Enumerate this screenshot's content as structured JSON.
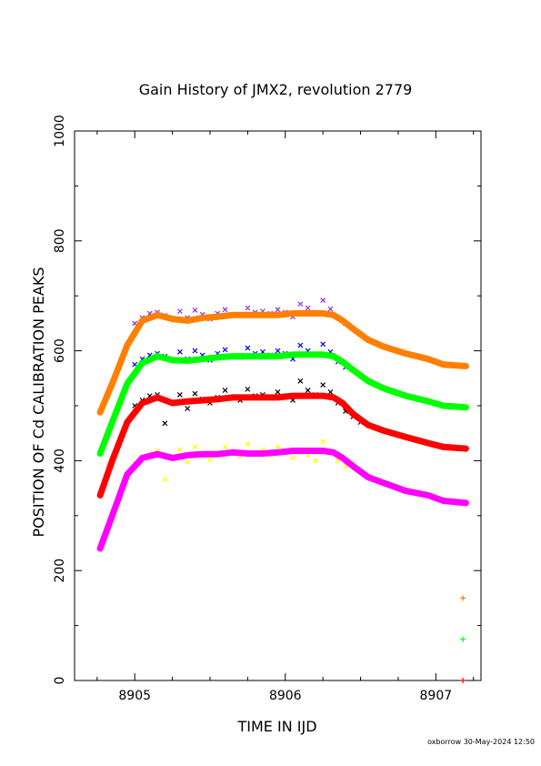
{
  "chart_data": {
    "type": "scatter",
    "title": "Gain History of JMX2, revolution 2779",
    "xlabel": "TIME IN IJD",
    "ylabel": "POSITION OF Cd CALIBRATION PEAKS",
    "footer": "oxborrow 30-May-2024 12:50",
    "xlim": [
      8904.6,
      8907.3
    ],
    "ylim": [
      0,
      1000
    ],
    "x_ticks": [
      8905,
      8906,
      8907
    ],
    "y_ticks": [
      0,
      200,
      400,
      600,
      800,
      1000
    ],
    "grid": false,
    "legend": "none",
    "smooth_series": [
      {
        "color": "#ff7f00",
        "x": [
          8904.77,
          8904.85,
          8904.95,
          8905.05,
          8905.15,
          8905.25,
          8905.35,
          8905.45,
          8905.55,
          8905.65,
          8905.75,
          8905.85,
          8905.95,
          8906.05,
          8906.15,
          8906.25,
          8906.32,
          8906.38,
          8906.45,
          8906.55,
          8906.65,
          8906.8,
          8906.95,
          8907.05,
          8907.2
        ],
        "y": [
          488,
          540,
          610,
          655,
          665,
          658,
          655,
          660,
          662,
          665,
          665,
          665,
          665,
          668,
          668,
          668,
          665,
          655,
          640,
          620,
          608,
          595,
          585,
          575,
          572
        ]
      },
      {
        "color": "#00ff00",
        "x": [
          8904.77,
          8904.85,
          8904.95,
          8905.05,
          8905.15,
          8905.25,
          8905.35,
          8905.45,
          8905.55,
          8905.65,
          8905.75,
          8905.85,
          8905.95,
          8906.05,
          8906.15,
          8906.25,
          8906.32,
          8906.38,
          8906.45,
          8906.55,
          8906.65,
          8906.8,
          8906.95,
          8907.05,
          8907.2
        ],
        "y": [
          413,
          470,
          540,
          578,
          590,
          583,
          582,
          585,
          588,
          590,
          590,
          590,
          590,
          593,
          593,
          593,
          590,
          580,
          565,
          545,
          532,
          518,
          508,
          500,
          497
        ]
      },
      {
        "color": "#ff0000",
        "x": [
          8904.77,
          8904.85,
          8904.95,
          8905.05,
          8905.15,
          8905.25,
          8905.35,
          8905.45,
          8905.55,
          8905.65,
          8905.75,
          8905.85,
          8905.95,
          8906.05,
          8906.15,
          8906.25,
          8906.32,
          8906.38,
          8906.45,
          8906.55,
          8906.65,
          8906.8,
          8906.95,
          8907.05,
          8907.2
        ],
        "y": [
          337,
          400,
          470,
          505,
          515,
          505,
          508,
          510,
          512,
          515,
          515,
          515,
          515,
          518,
          518,
          518,
          515,
          505,
          485,
          465,
          455,
          443,
          432,
          425,
          422
        ]
      },
      {
        "color": "#ff00ff",
        "x": [
          8904.77,
          8904.85,
          8904.95,
          8905.05,
          8905.15,
          8905.25,
          8905.35,
          8905.45,
          8905.55,
          8905.65,
          8905.75,
          8905.85,
          8905.95,
          8906.05,
          8906.15,
          8906.25,
          8906.32,
          8906.38,
          8906.45,
          8906.55,
          8906.65,
          8906.8,
          8906.95,
          8907.05,
          8907.2
        ],
        "y": [
          240,
          300,
          375,
          405,
          412,
          405,
          410,
          412,
          412,
          415,
          413,
          413,
          415,
          418,
          418,
          418,
          415,
          405,
          390,
          370,
          360,
          345,
          337,
          327,
          323
        ]
      }
    ],
    "scatter_series": [
      {
        "color": "#8a2be2",
        "x": [
          8905.0,
          8905.05,
          8905.1,
          8905.15,
          8905.2,
          8905.3,
          8905.35,
          8905.4,
          8905.45,
          8905.5,
          8905.55,
          8905.6,
          8905.7,
          8905.75,
          8905.8,
          8905.85,
          8905.9,
          8905.95,
          8906.0,
          8906.05,
          8906.1,
          8906.15,
          8906.2,
          8906.25,
          8906.3,
          8906.35,
          8906.4,
          8906.45,
          8906.5
        ],
        "y": [
          650,
          660,
          668,
          670,
          664,
          672,
          660,
          674,
          666,
          658,
          668,
          675,
          664,
          678,
          670,
          672,
          668,
          675,
          670,
          662,
          685,
          678,
          670,
          692,
          676,
          660,
          650,
          640,
          630
        ]
      },
      {
        "color": "#0000ff",
        "x": [
          8905.0,
          8905.05,
          8905.1,
          8905.15,
          8905.2,
          8905.3,
          8905.35,
          8905.4,
          8905.45,
          8905.5,
          8905.55,
          8905.6,
          8905.7,
          8905.75,
          8905.8,
          8905.85,
          8905.9,
          8905.95,
          8906.0,
          8906.05,
          8906.1,
          8906.15,
          8906.2,
          8906.25,
          8906.3,
          8906.35,
          8906.4,
          8906.45,
          8906.5
        ],
        "y": [
          575,
          585,
          592,
          595,
          590,
          598,
          585,
          600,
          592,
          583,
          595,
          602,
          588,
          605,
          595,
          598,
          592,
          600,
          595,
          585,
          610,
          600,
          592,
          612,
          598,
          580,
          570,
          565,
          555
        ]
      },
      {
        "color": "#000000",
        "x": [
          8905.0,
          8905.05,
          8905.1,
          8905.15,
          8905.2,
          8905.3,
          8905.35,
          8905.4,
          8905.45,
          8905.5,
          8905.55,
          8905.6,
          8905.7,
          8905.75,
          8905.8,
          8905.85,
          8905.9,
          8905.95,
          8906.0,
          8906.05,
          8906.1,
          8906.15,
          8906.2,
          8906.25,
          8906.3,
          8906.35,
          8906.4,
          8906.45,
          8906.5
        ],
        "y": [
          500,
          510,
          518,
          520,
          468,
          520,
          495,
          522,
          512,
          505,
          515,
          528,
          510,
          530,
          518,
          520,
          515,
          525,
          518,
          510,
          545,
          528,
          520,
          538,
          525,
          505,
          490,
          480,
          470
        ]
      },
      {
        "color": "#ffff00",
        "x": [
          8905.0,
          8905.05,
          8905.1,
          8905.15,
          8905.2,
          8905.3,
          8905.35,
          8905.4,
          8905.45,
          8905.5,
          8905.55,
          8905.6,
          8905.7,
          8905.75,
          8905.8,
          8905.85,
          8905.9,
          8905.95,
          8906.0,
          8906.05,
          8906.1,
          8906.15,
          8906.2,
          8906.25,
          8906.3,
          8906.35,
          8906.4,
          8906.45,
          8906.5
        ],
        "y": [
          395,
          405,
          412,
          418,
          366,
          420,
          398,
          425,
          410,
          402,
          415,
          425,
          408,
          430,
          415,
          420,
          410,
          425,
          415,
          405,
          415,
          410,
          400,
          435,
          418,
          400,
          390,
          385,
          380
        ]
      }
    ],
    "extra_points": [
      {
        "x": 8907.18,
        "y": 150,
        "color": "#ff7f00"
      },
      {
        "x": 8907.18,
        "y": 75,
        "color": "#00ff00"
      },
      {
        "x": 8907.18,
        "y": 0,
        "color": "#ff0000"
      }
    ]
  }
}
